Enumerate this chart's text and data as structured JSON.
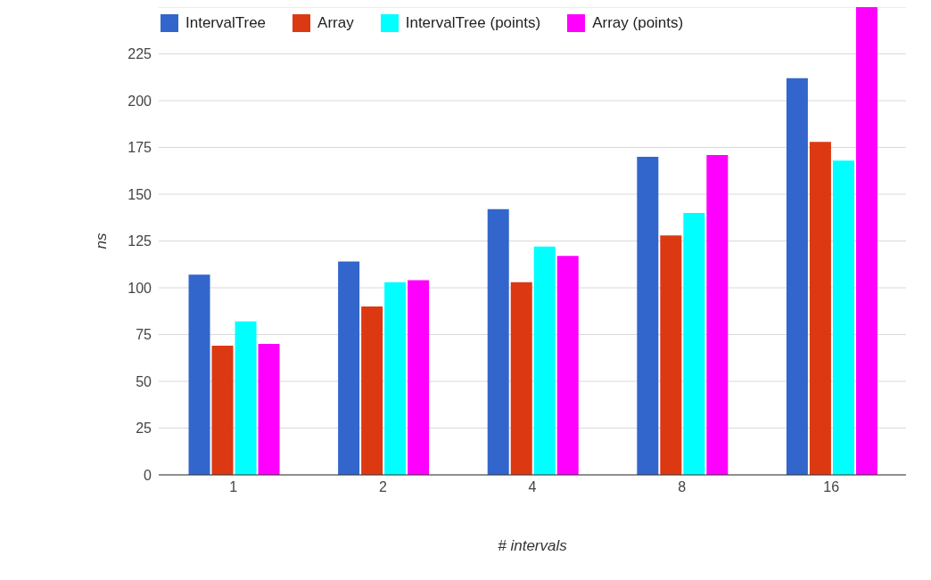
{
  "chart_data": {
    "type": "bar",
    "xlabel": "# intervals",
    "ylabel": "ns",
    "categories": [
      "1",
      "2",
      "4",
      "8",
      "16"
    ],
    "series": [
      {
        "name": "IntervalTree",
        "color": "#3366cc",
        "values": [
          107,
          114,
          142,
          170,
          212
        ]
      },
      {
        "name": "Array",
        "color": "#dc3912",
        "values": [
          69,
          90,
          103,
          128,
          178
        ]
      },
      {
        "name": "IntervalTree (points)",
        "color": "#00ffff",
        "values": [
          82,
          103,
          122,
          140,
          168
        ]
      },
      {
        "name": "Array (points)",
        "color": "#ff00ff",
        "values": [
          70,
          104,
          117,
          171,
          250
        ]
      }
    ],
    "ylim": [
      0,
      250
    ],
    "yticks": [
      0,
      25,
      50,
      75,
      100,
      125,
      150,
      175,
      200,
      225
    ],
    "grid": "y",
    "legend": "top left"
  }
}
